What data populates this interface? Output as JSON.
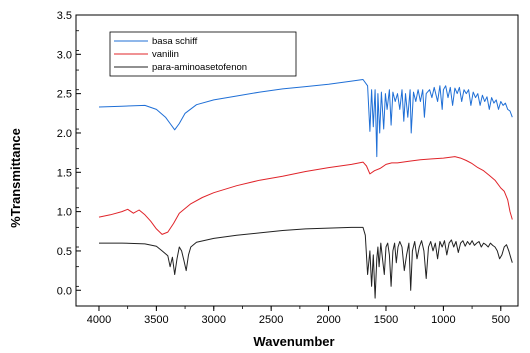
{
  "chart_data": {
    "type": "line",
    "title": "",
    "xlabel": "Wavenumber",
    "ylabel": "%Transmittance",
    "xlim": [
      4200,
      350
    ],
    "ylim": [
      -0.2,
      3.5
    ],
    "x_reversed": true,
    "x_ticks": [
      4000,
      3500,
      3000,
      2500,
      2000,
      1500,
      1000,
      500
    ],
    "x_tick_labels": [
      "4000",
      "3500",
      "3000",
      "2500",
      "2000",
      "1500",
      "1000",
      "500"
    ],
    "y_ticks": [
      0.0,
      0.5,
      1.0,
      1.5,
      2.0,
      2.5,
      3.0,
      3.5
    ],
    "y_tick_labels": [
      "0.0",
      "0.5",
      "1.0",
      "1.5",
      "2.0",
      "2.5",
      "3.0",
      "3.5"
    ],
    "grid": false,
    "legend_position": "top-left",
    "series": [
      {
        "name": "basa schiff",
        "color": "#1f6fd6",
        "x": [
          4000,
          3800,
          3600,
          3500,
          3420,
          3380,
          3340,
          3300,
          3250,
          3150,
          3000,
          2800,
          2600,
          2400,
          2200,
          2000,
          1800,
          1700,
          1660,
          1640,
          1625,
          1610,
          1595,
          1580,
          1570,
          1555,
          1540,
          1520,
          1505,
          1490,
          1470,
          1455,
          1440,
          1420,
          1400,
          1380,
          1360,
          1345,
          1330,
          1310,
          1290,
          1280,
          1260,
          1240,
          1220,
          1200,
          1180,
          1165,
          1150,
          1120,
          1100,
          1080,
          1050,
          1030,
          1010,
          1000,
          980,
          960,
          940,
          920,
          900,
          880,
          860,
          840,
          820,
          800,
          780,
          760,
          740,
          720,
          700,
          680,
          660,
          640,
          620,
          600,
          580,
          560,
          540,
          520,
          500,
          480,
          460,
          440,
          420,
          400
        ],
        "y": [
          2.33,
          2.34,
          2.35,
          2.3,
          2.2,
          2.12,
          2.04,
          2.12,
          2.25,
          2.36,
          2.42,
          2.47,
          2.52,
          2.56,
          2.59,
          2.62,
          2.66,
          2.68,
          2.6,
          2.02,
          2.55,
          2.08,
          2.55,
          1.7,
          2.5,
          2.0,
          2.52,
          2.05,
          2.5,
          2.3,
          2.55,
          2.1,
          2.52,
          2.4,
          2.5,
          2.3,
          2.55,
          2.15,
          2.5,
          2.2,
          2.55,
          2.0,
          2.52,
          2.4,
          2.55,
          2.4,
          2.55,
          2.2,
          2.5,
          2.55,
          2.45,
          2.58,
          2.4,
          2.6,
          2.3,
          2.55,
          2.6,
          2.45,
          2.58,
          2.35,
          2.57,
          2.5,
          2.58,
          2.4,
          2.55,
          2.5,
          2.55,
          2.35,
          2.52,
          2.45,
          2.5,
          2.35,
          2.48,
          2.4,
          2.46,
          2.3,
          2.45,
          2.38,
          2.42,
          2.3,
          2.4,
          2.35,
          2.38,
          2.3,
          2.28,
          2.2
        ]
      },
      {
        "name": "vanilin",
        "color": "#e0242a",
        "x": [
          4000,
          3900,
          3800,
          3750,
          3700,
          3650,
          3600,
          3550,
          3500,
          3450,
          3400,
          3350,
          3300,
          3200,
          3100,
          3000,
          2800,
          2600,
          2400,
          2200,
          2000,
          1800,
          1700,
          1670,
          1640,
          1600,
          1550,
          1500,
          1450,
          1400,
          1300,
          1200,
          1100,
          1000,
          900,
          850,
          800,
          750,
          700,
          650,
          600,
          550,
          500,
          470,
          440,
          420,
          400
        ],
        "y": [
          0.93,
          0.96,
          1.0,
          1.03,
          0.98,
          1.02,
          0.96,
          0.88,
          0.78,
          0.71,
          0.74,
          0.85,
          0.98,
          1.1,
          1.18,
          1.24,
          1.33,
          1.4,
          1.45,
          1.51,
          1.56,
          1.6,
          1.63,
          1.58,
          1.48,
          1.52,
          1.55,
          1.6,
          1.62,
          1.62,
          1.64,
          1.66,
          1.67,
          1.68,
          1.7,
          1.68,
          1.65,
          1.61,
          1.56,
          1.52,
          1.46,
          1.4,
          1.3,
          1.26,
          1.15,
          1.0,
          0.9
        ]
      },
      {
        "name": "para-aminoasetofenon",
        "color": "#222222",
        "x": [
          4000,
          3800,
          3600,
          3500,
          3450,
          3400,
          3380,
          3360,
          3340,
          3320,
          3300,
          3280,
          3260,
          3240,
          3220,
          3200,
          3150,
          3000,
          2800,
          2600,
          2400,
          2200,
          2000,
          1800,
          1700,
          1680,
          1660,
          1640,
          1625,
          1610,
          1595,
          1580,
          1570,
          1560,
          1545,
          1530,
          1515,
          1500,
          1485,
          1470,
          1455,
          1440,
          1425,
          1410,
          1395,
          1380,
          1360,
          1340,
          1320,
          1300,
          1285,
          1270,
          1250,
          1230,
          1210,
          1190,
          1170,
          1150,
          1130,
          1110,
          1090,
          1070,
          1050,
          1030,
          1010,
          990,
          970,
          950,
          930,
          910,
          890,
          870,
          850,
          830,
          810,
          790,
          770,
          750,
          730,
          710,
          690,
          670,
          650,
          630,
          610,
          590,
          570,
          550,
          530,
          510,
          490,
          470,
          450,
          430,
          410,
          400
        ],
        "y": [
          0.6,
          0.6,
          0.59,
          0.56,
          0.5,
          0.44,
          0.3,
          0.42,
          0.2,
          0.4,
          0.55,
          0.5,
          0.38,
          0.25,
          0.45,
          0.55,
          0.61,
          0.66,
          0.7,
          0.73,
          0.76,
          0.78,
          0.79,
          0.8,
          0.8,
          0.7,
          0.2,
          0.5,
          0.05,
          0.45,
          -0.1,
          0.4,
          0.55,
          0.3,
          0.6,
          0.4,
          0.2,
          0.55,
          0.6,
          0.45,
          0.05,
          0.5,
          0.6,
          0.35,
          0.55,
          0.62,
          0.55,
          0.25,
          0.45,
          0.6,
          0.0,
          0.5,
          0.62,
          0.4,
          0.55,
          0.63,
          0.5,
          0.15,
          0.55,
          0.62,
          0.5,
          0.6,
          0.4,
          0.62,
          0.55,
          0.63,
          0.45,
          0.6,
          0.64,
          0.55,
          0.62,
          0.48,
          0.6,
          0.63,
          0.56,
          0.62,
          0.58,
          0.63,
          0.57,
          0.6,
          0.62,
          0.55,
          0.6,
          0.58,
          0.55,
          0.6,
          0.57,
          0.55,
          0.5,
          0.4,
          0.45,
          0.55,
          0.58,
          0.5,
          0.4,
          0.35
        ]
      }
    ]
  }
}
